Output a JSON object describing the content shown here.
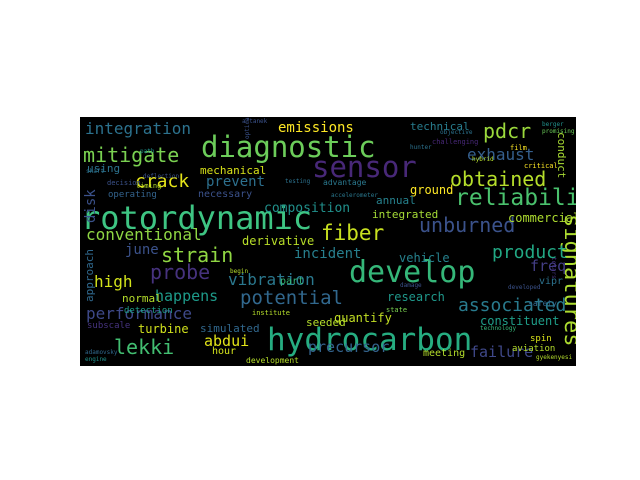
{
  "word_cloud": {
    "background": "#000000",
    "words": [
      {
        "text": "rotordynamic",
        "color": "#3ec583"
      },
      {
        "text": "hydrocarbon",
        "color": "#26ad81"
      },
      {
        "text": "develop",
        "color": "#35b779"
      },
      {
        "text": "diagnostic",
        "color": "#6ccd5a"
      },
      {
        "text": "sensor",
        "color": "#482878"
      },
      {
        "text": "reliability",
        "color": "#4ac16d"
      },
      {
        "text": "signatures",
        "color": "#addc30"
      },
      {
        "text": "fiber",
        "color": "#c8e020"
      },
      {
        "text": "unburned",
        "color": "#3b528b"
      },
      {
        "text": "obtained",
        "color": "#b5de2b"
      },
      {
        "text": "mitigate",
        "color": "#7ad151"
      },
      {
        "text": "strain",
        "color": "#90d743"
      },
      {
        "text": "probe",
        "color": "#46327e"
      },
      {
        "text": "potential",
        "color": "#31688e"
      },
      {
        "text": "integration",
        "color": "#2c728e"
      },
      {
        "text": "pdcr",
        "color": "#9bd93c"
      },
      {
        "text": "exhaust",
        "color": "#355f8d"
      },
      {
        "text": "crack",
        "color": "#e5e419"
      },
      {
        "text": "conventional",
        "color": "#8fd744"
      },
      {
        "text": "vibration",
        "color": "#2a788e"
      },
      {
        "text": "product",
        "color": "#22a884"
      },
      {
        "text": "associated",
        "color": "#297b8e"
      },
      {
        "text": "lekki",
        "color": "#42be71"
      },
      {
        "text": "performance",
        "color": "#3e4989"
      },
      {
        "text": "precursor",
        "color": "#33638d"
      },
      {
        "text": "failure",
        "color": "#3f4889"
      },
      {
        "text": "emissions",
        "color": "#fde725"
      },
      {
        "text": "prevent",
        "color": "#2d708e"
      },
      {
        "text": "incident",
        "color": "#277f8e"
      },
      {
        "text": "high",
        "color": "#d2e21b"
      },
      {
        "text": "happens",
        "color": "#1e9b8a"
      },
      {
        "text": "abdui",
        "color": "#e2e418"
      },
      {
        "text": "freq",
        "color": "#433e85"
      },
      {
        "text": "june",
        "color": "#3b528b"
      },
      {
        "text": "disk",
        "color": "#3b528b"
      },
      {
        "text": "composition",
        "color": "#21918c"
      },
      {
        "text": "derivative",
        "color": "#b8de29"
      },
      {
        "text": "mechanical",
        "color": "#d8e219"
      },
      {
        "text": "research",
        "color": "#1f988b"
      },
      {
        "text": "constituent",
        "color": "#1f9e89"
      },
      {
        "text": "turbine",
        "color": "#d0e11c"
      },
      {
        "text": "simulated",
        "color": "#31688e"
      },
      {
        "text": "quantify",
        "color": "#c2df23"
      },
      {
        "text": "seeded",
        "color": "#b5de2b"
      },
      {
        "text": "integrated",
        "color": "#a5db36"
      },
      {
        "text": "commercial",
        "color": "#addc30"
      },
      {
        "text": "vehicle",
        "color": "#26828e"
      },
      {
        "text": "ground",
        "color": "#fde725"
      },
      {
        "text": "annual",
        "color": "#26828e"
      },
      {
        "text": "technical",
        "color": "#287d8e"
      },
      {
        "text": "conduct",
        "color": "#a8db34"
      },
      {
        "text": "approach",
        "color": "#30698e"
      },
      {
        "text": "normal",
        "color": "#b5de2b"
      },
      {
        "text": "using",
        "color": "#2c728e"
      },
      {
        "text": "hour",
        "color": "#d2e21b"
      },
      {
        "text": "meeting",
        "color": "#b5de2b"
      },
      {
        "text": "vipr",
        "color": "#2c728e"
      },
      {
        "text": "part",
        "color": "#35b779"
      },
      {
        "text": "necessary",
        "color": "#3b528b"
      },
      {
        "text": "detection",
        "color": "#1f9e89"
      },
      {
        "text": "subscale",
        "color": "#46337f"
      },
      {
        "text": "development",
        "color": "#b5de2b"
      },
      {
        "text": "aviation",
        "color": "#b5de2b"
      },
      {
        "text": "spin",
        "color": "#d8e219"
      },
      {
        "text": "safety",
        "color": "#31688e"
      },
      {
        "text": "advantage",
        "color": "#2a788e"
      },
      {
        "text": "operating",
        "color": "#33638d"
      },
      {
        "text": "institute",
        "color": "#b5de2b"
      },
      {
        "text": "state",
        "color": "#7ad151"
      },
      {
        "text": "timing",
        "color": "#b5de2b"
      },
      {
        "text": "decision",
        "color": "#3b528b"
      },
      {
        "text": "technology",
        "color": "#35b779"
      },
      {
        "text": "accelerometer",
        "color": "#2a788e"
      },
      {
        "text": "deflection",
        "color": "#3b528b"
      },
      {
        "text": "challenging",
        "color": "#482878"
      },
      {
        "text": "adamovsky",
        "color": "#30698e"
      },
      {
        "text": "engine",
        "color": "#21918c"
      },
      {
        "text": "objective",
        "color": "#2c728e"
      },
      {
        "text": "film",
        "color": "#fde725"
      },
      {
        "text": "critical",
        "color": "#fde725"
      },
      {
        "text": "hybrid",
        "color": "#b5de2b"
      },
      {
        "text": "berger",
        "color": "#21918c"
      },
      {
        "text": "promising",
        "color": "#6ccd5a"
      },
      {
        "text": "artanek",
        "color": "#3b528b"
      },
      {
        "text": "testing",
        "color": "#2c728e"
      },
      {
        "text": "begin",
        "color": "#b5de2b"
      },
      {
        "text": "damage",
        "color": "#3b528b"
      },
      {
        "text": "path",
        "color": "#21918c"
      },
      {
        "text": "gyekenyesi",
        "color": "#b5de2b"
      },
      {
        "text": "tokars",
        "color": "#46337f"
      },
      {
        "text": "developed",
        "color": "#3b528b"
      },
      {
        "text": "shaft",
        "color": "#2c728e"
      },
      {
        "text": "optical",
        "color": "#3b528b"
      },
      {
        "text": "hunter",
        "color": "#2c728e"
      }
    ]
  }
}
